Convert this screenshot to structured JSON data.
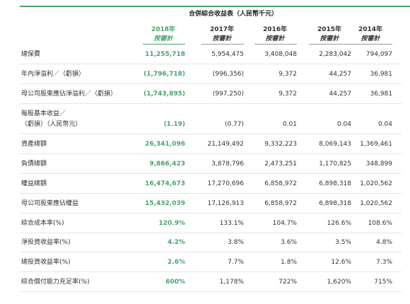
{
  "title": "合併綜合收益表（人民幣千元）",
  "columns": [
    {
      "year": "2018年",
      "basis": "按審計"
    },
    {
      "year": "2017年",
      "basis": "按審計"
    },
    {
      "year": "2016年",
      "basis": "按審計"
    },
    {
      "year": "2015年",
      "basis": "按審計"
    },
    {
      "year": "2014年",
      "basis": "按審計"
    }
  ],
  "rows": [
    {
      "label": [
        "總保費"
      ],
      "values": [
        "11,255,718",
        "5,954,475",
        "3,408,048",
        "2,283,042",
        "794,097"
      ]
    },
    {
      "label": [
        "年內淨溢利／（虧損）"
      ],
      "values": [
        "(1,796,718)",
        "(996,356)",
        "9,372",
        "44,257",
        "36,981"
      ]
    },
    {
      "label": [
        "母公司股東應佔淨溢利／（虧損）"
      ],
      "values": [
        "(1,743,895)",
        "(997,250)",
        "9,372",
        "44,257",
        "36,981"
      ]
    },
    {
      "label": [
        "每股基本收益／",
        "（虧損）（人民幣元）"
      ],
      "values": [
        "(1.19)",
        "(0.77)",
        "0.01",
        "0.04",
        "0.04"
      ]
    },
    {
      "label": [
        "資產總額"
      ],
      "values": [
        "26,341,096",
        "21,149,492",
        "9,332,223",
        "8,069,143",
        "1,369,461"
      ]
    },
    {
      "label": [
        "負債總額"
      ],
      "values": [
        "9,866,423",
        "3,878,796",
        "2,473,251",
        "1,170,825",
        "348,899"
      ]
    },
    {
      "label": [
        "權益總額"
      ],
      "values": [
        "16,474,673",
        "17,270,696",
        "6,858,972",
        "6,898,318",
        "1,020,562"
      ]
    },
    {
      "label": [
        "母公司股東應佔權益"
      ],
      "values": [
        "15,432,039",
        "17,126,913",
        "6,858,972",
        "6,898,318",
        "1,020,562"
      ]
    },
    {
      "label": [
        "綜合成本率(%)"
      ],
      "values": [
        "120.9%",
        "133.1%",
        "104.7%",
        "126.6%",
        "108.6%"
      ]
    },
    {
      "label": [
        "淨投資收益率(%)"
      ],
      "values": [
        "4.2%",
        "3.8%",
        "3.6%",
        "3.5%",
        "4.8%"
      ]
    },
    {
      "label": [
        "總投資收益率(%)"
      ],
      "values": [
        "2.6%",
        "7.7%",
        "1.8%",
        "12.6%",
        "7.3%"
      ]
    },
    {
      "label": [
        "綜合償付能力充足率(%)"
      ],
      "values": [
        "600%",
        "1,178%",
        "722%",
        "1,620%",
        "715%"
      ]
    }
  ]
}
